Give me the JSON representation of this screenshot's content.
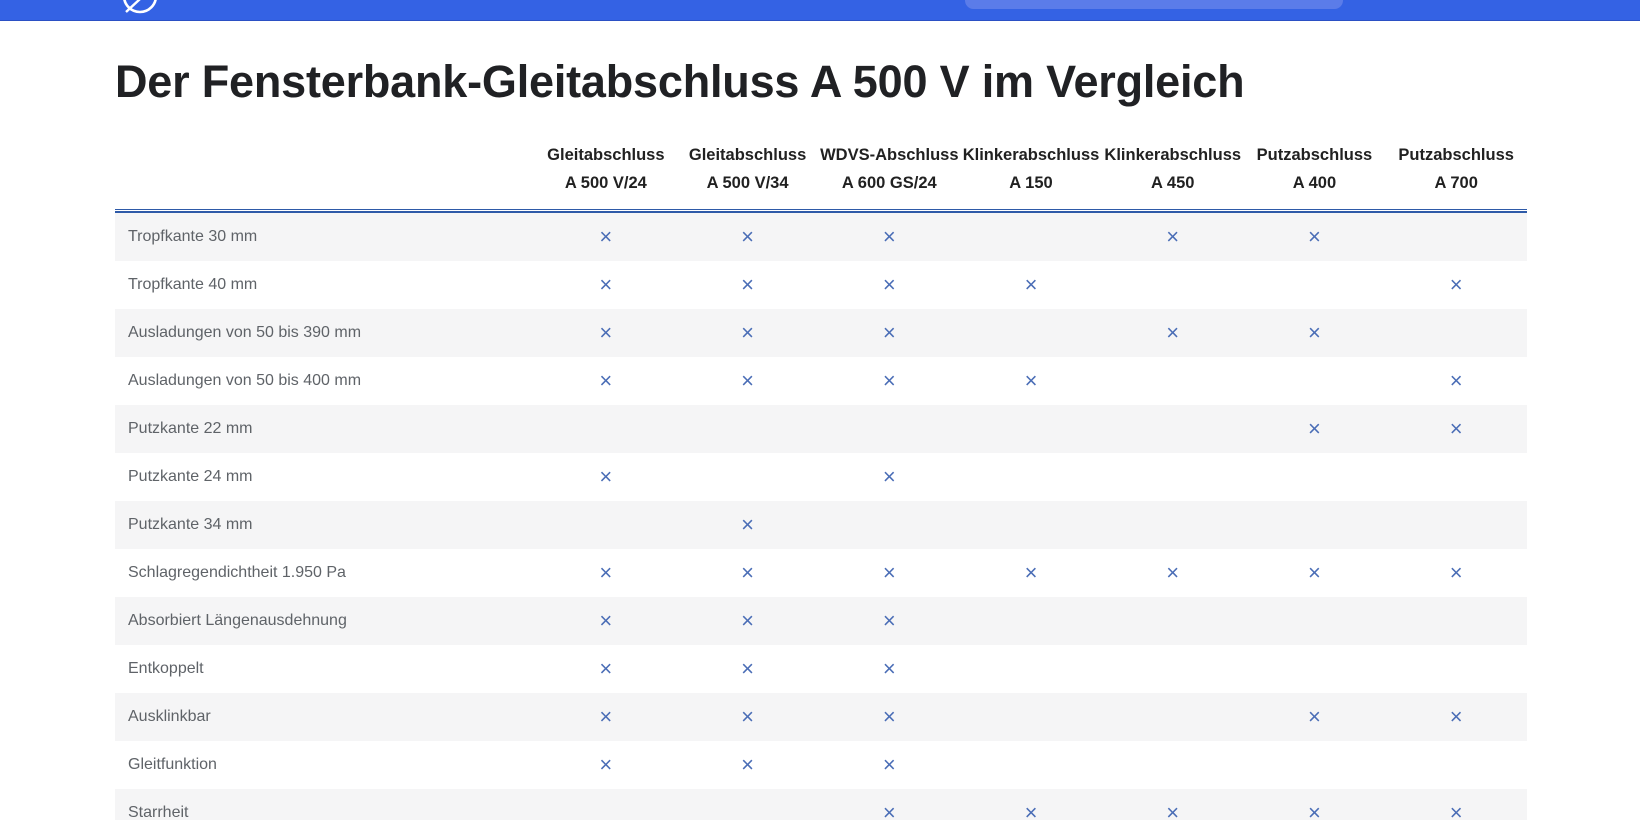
{
  "topbar": {
    "background": "#3462e4",
    "edge_color": "#2b50c4",
    "search_background": "#5b7ce9",
    "logo_icon": "globe-logo-icon"
  },
  "page": {
    "title": "Der Fensterbank-Gleitabschluss A 500 V im Vergleich"
  },
  "table": {
    "mark_symbol": "×",
    "mark_color": "#4a6db6",
    "divider_color": "#2e5aa8",
    "stripe_color": "#f5f5f6",
    "columns": [
      {
        "line1": "Gleitabschluss",
        "line2": "A 500 V/24"
      },
      {
        "line1": "Gleitabschluss",
        "line2": "A 500 V/34"
      },
      {
        "line1": "WDVS-Abschluss",
        "line2": "A 600 GS/24"
      },
      {
        "line1": "Klinkerabschluss",
        "line2": "A 150"
      },
      {
        "line1": "Klinkerabschluss",
        "line2": "A 450"
      },
      {
        "line1": "Putzabschluss",
        "line2": "A 400"
      },
      {
        "line1": "Putzabschluss",
        "line2": "A 700"
      }
    ],
    "rows": [
      {
        "label": "Tropfkante 30 mm",
        "marks": [
          1,
          1,
          1,
          0,
          1,
          1,
          0
        ]
      },
      {
        "label": "Tropfkante 40 mm",
        "marks": [
          1,
          1,
          1,
          1,
          0,
          0,
          1
        ]
      },
      {
        "label": "Ausladungen von 50 bis 390 mm",
        "marks": [
          1,
          1,
          1,
          0,
          1,
          1,
          0
        ]
      },
      {
        "label": "Ausladungen von 50 bis 400 mm",
        "marks": [
          1,
          1,
          1,
          1,
          0,
          0,
          1
        ]
      },
      {
        "label": "Putzkante 22 mm",
        "marks": [
          0,
          0,
          0,
          0,
          0,
          1,
          1
        ]
      },
      {
        "label": "Putzkante 24 mm",
        "marks": [
          1,
          0,
          1,
          0,
          0,
          0,
          0
        ]
      },
      {
        "label": "Putzkante 34 mm",
        "marks": [
          0,
          1,
          0,
          0,
          0,
          0,
          0
        ]
      },
      {
        "label": "Schlagregendichtheit 1.950 Pa",
        "marks": [
          1,
          1,
          1,
          1,
          1,
          1,
          1
        ]
      },
      {
        "label": "Absorbiert Längenausdehnung",
        "marks": [
          1,
          1,
          1,
          0,
          0,
          0,
          0
        ]
      },
      {
        "label": "Entkoppelt",
        "marks": [
          1,
          1,
          1,
          0,
          0,
          0,
          0
        ]
      },
      {
        "label": "Ausklinkbar",
        "marks": [
          1,
          1,
          1,
          0,
          0,
          1,
          1
        ]
      },
      {
        "label": "Gleitfunktion",
        "marks": [
          1,
          1,
          1,
          0,
          0,
          0,
          0
        ]
      },
      {
        "label": "Starrheit",
        "marks": [
          0,
          0,
          1,
          1,
          1,
          1,
          1
        ]
      }
    ]
  }
}
